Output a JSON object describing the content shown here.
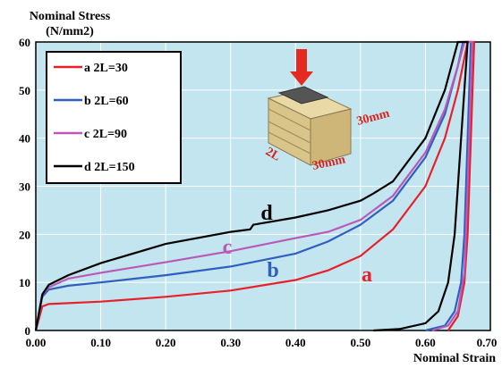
{
  "chart_data": {
    "type": "line",
    "ylabel_lines": [
      "Nominal Stress",
      "(N/mm2)"
    ],
    "xlabel": "Nominal Strain",
    "xlim": [
      0,
      0.7
    ],
    "ylim": [
      0,
      60
    ],
    "xticks": [
      {
        "value": 0,
        "label": "0.00"
      },
      {
        "value": 0.1,
        "label": "0.10"
      },
      {
        "value": 0.2,
        "label": "0.20"
      },
      {
        "value": 0.3,
        "label": "0.30"
      },
      {
        "value": 0.4,
        "label": "0.40"
      },
      {
        "value": 0.5,
        "label": "0.50"
      },
      {
        "value": 0.6,
        "label": "0.60"
      },
      {
        "value": 0.7,
        "label": "0.70"
      }
    ],
    "yticks": [
      0,
      10,
      20,
      30,
      40,
      50,
      60
    ],
    "grid": true,
    "background": "#c3e5ef",
    "legend": "upper left",
    "series": [
      {
        "name": "a 2L=30",
        "label": "a",
        "color": "#e8202a",
        "x": [
          0,
          0.01,
          0.02,
          0.1,
          0.2,
          0.3,
          0.4,
          0.45,
          0.5,
          0.55,
          0.6,
          0.63,
          0.65,
          0.665,
          0.675,
          0.67,
          0.665,
          0.66,
          0.65,
          0.635
        ],
        "values": [
          0,
          5,
          5.5,
          6,
          7,
          8.3,
          10.5,
          12.5,
          15.5,
          21,
          30,
          40,
          50,
          60,
          60,
          40,
          20,
          10,
          3,
          0
        ]
      },
      {
        "name": "b 2L=60",
        "label": "b",
        "color": "#2f5fbf",
        "x": [
          0,
          0.01,
          0.02,
          0.05,
          0.1,
          0.2,
          0.3,
          0.4,
          0.45,
          0.5,
          0.55,
          0.6,
          0.63,
          0.65,
          0.658,
          0.67,
          0.665,
          0.66,
          0.655,
          0.645,
          0.63,
          0.6
        ],
        "values": [
          0,
          7,
          8.5,
          9.3,
          10,
          11.5,
          13.3,
          16,
          18.5,
          22,
          27,
          36,
          45,
          55,
          60,
          60,
          40,
          20,
          10,
          4,
          1,
          0
        ]
      },
      {
        "name": "c 2L=90",
        "label": "c",
        "color": "#b95ab8",
        "x": [
          0,
          0.01,
          0.02,
          0.05,
          0.1,
          0.2,
          0.3,
          0.4,
          0.45,
          0.5,
          0.55,
          0.6,
          0.63,
          0.65,
          0.66,
          0.672,
          0.665,
          0.66,
          0.65,
          0.635,
          0.61
        ],
        "values": [
          0,
          7.5,
          9,
          10.8,
          12,
          14.2,
          16.5,
          19.2,
          20.5,
          23,
          28,
          37,
          46,
          55,
          60,
          60,
          30,
          12,
          4,
          1,
          0
        ]
      },
      {
        "name": "d 2L=150",
        "label": "d",
        "color": "#000000",
        "x": [
          0,
          0.01,
          0.02,
          0.05,
          0.1,
          0.2,
          0.3,
          0.33,
          0.335,
          0.4,
          0.45,
          0.5,
          0.52,
          0.55,
          0.6,
          0.63,
          0.65,
          0.665,
          0.655,
          0.645,
          0.635,
          0.62,
          0.6,
          0.56,
          0.52
        ],
        "values": [
          0,
          7.5,
          9.5,
          11.5,
          14,
          18,
          20.5,
          21,
          22,
          23.5,
          25,
          27,
          28.5,
          31,
          40,
          50,
          60,
          60,
          40,
          20,
          10,
          4,
          1.5,
          0.3,
          0
        ]
      }
    ]
  },
  "inset": {
    "labels": [
      "30mm",
      "2L",
      "30mm"
    ]
  }
}
